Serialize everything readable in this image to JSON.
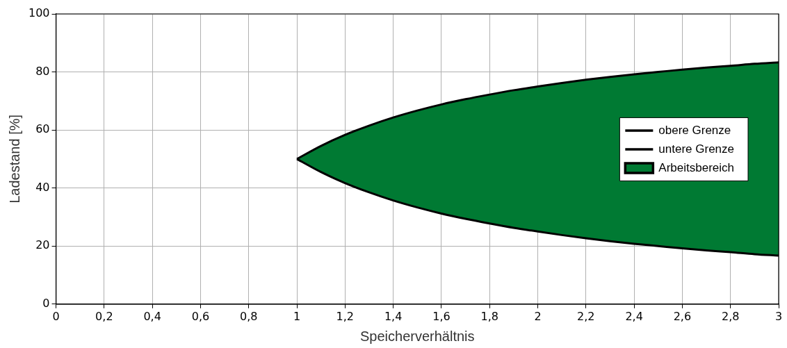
{
  "chart_data": {
    "type": "line",
    "xlabel": "Speicherverhältnis",
    "ylabel": "Ladestand [%]",
    "x": [
      1,
      1.1,
      1.2,
      1.3,
      1.4,
      1.5,
      1.6,
      1.7,
      1.8,
      1.9,
      2,
      2.1,
      2.2,
      2.3,
      2.4,
      2.5,
      2.6,
      2.7,
      2.8,
      2.9,
      3
    ],
    "series": [
      {
        "name": "obere Grenze",
        "type": "line",
        "color": "#000000",
        "values": [
          50,
          54.5,
          58.3,
          61.5,
          64.3,
          66.7,
          68.8,
          70.6,
          72.2,
          73.7,
          75,
          76.2,
          77.3,
          78.3,
          79.2,
          80,
          80.8,
          81.5,
          82.1,
          82.8,
          83.3
        ]
      },
      {
        "name": "untere Grenze",
        "type": "line",
        "color": "#000000",
        "values": [
          50,
          45.5,
          41.7,
          38.5,
          35.7,
          33.3,
          31.2,
          29.4,
          27.8,
          26.3,
          25,
          23.8,
          22.7,
          21.7,
          20.8,
          20,
          19.2,
          18.5,
          17.9,
          17.2,
          16.7
        ]
      },
      {
        "name": "Arbeitsbereich",
        "type": "area",
        "color": "#007a33",
        "values": [
          null,
          null,
          null,
          null,
          null,
          null,
          null,
          null,
          null,
          null,
          null,
          null,
          null,
          null,
          null,
          null,
          null,
          null,
          null,
          null,
          null
        ],
        "upper": [
          50,
          54.5,
          58.3,
          61.5,
          64.3,
          66.7,
          68.8,
          70.6,
          72.2,
          73.7,
          75,
          76.2,
          77.3,
          78.3,
          79.2,
          80,
          80.8,
          81.5,
          82.1,
          82.8,
          83.3
        ],
        "lower": [
          50,
          45.5,
          41.7,
          38.5,
          35.7,
          33.3,
          31.2,
          29.4,
          27.8,
          26.3,
          25,
          23.8,
          22.7,
          21.7,
          20.8,
          20,
          19.2,
          18.5,
          17.9,
          17.2,
          16.7
        ]
      }
    ],
    "xlim": [
      0,
      3
    ],
    "xticks": [
      0,
      {
        "value": 0.2,
        "label": "0,2"
      },
      {
        "value": 0.4,
        "label": "0,4"
      },
      {
        "value": 0.6,
        "label": "0,6"
      },
      {
        "value": 0.8,
        "label": "0,8"
      },
      1,
      {
        "value": 1.2,
        "label": "1,2"
      },
      {
        "value": 1.4,
        "label": "1,4"
      },
      {
        "value": 1.6,
        "label": "1,6"
      },
      {
        "value": 1.8,
        "label": "1,8"
      },
      2,
      {
        "value": 2.2,
        "label": "2,2"
      },
      {
        "value": 2.4,
        "label": "2,4"
      },
      {
        "value": 2.6,
        "label": "2,6"
      },
      {
        "value": 2.8,
        "label": "2,8"
      },
      3
    ],
    "ylim": [
      0,
      100
    ],
    "yticks": [
      0,
      20,
      40,
      60,
      80,
      100
    ],
    "grid": true,
    "legend": "right",
    "marker": "none",
    "line_style": "solid"
  }
}
